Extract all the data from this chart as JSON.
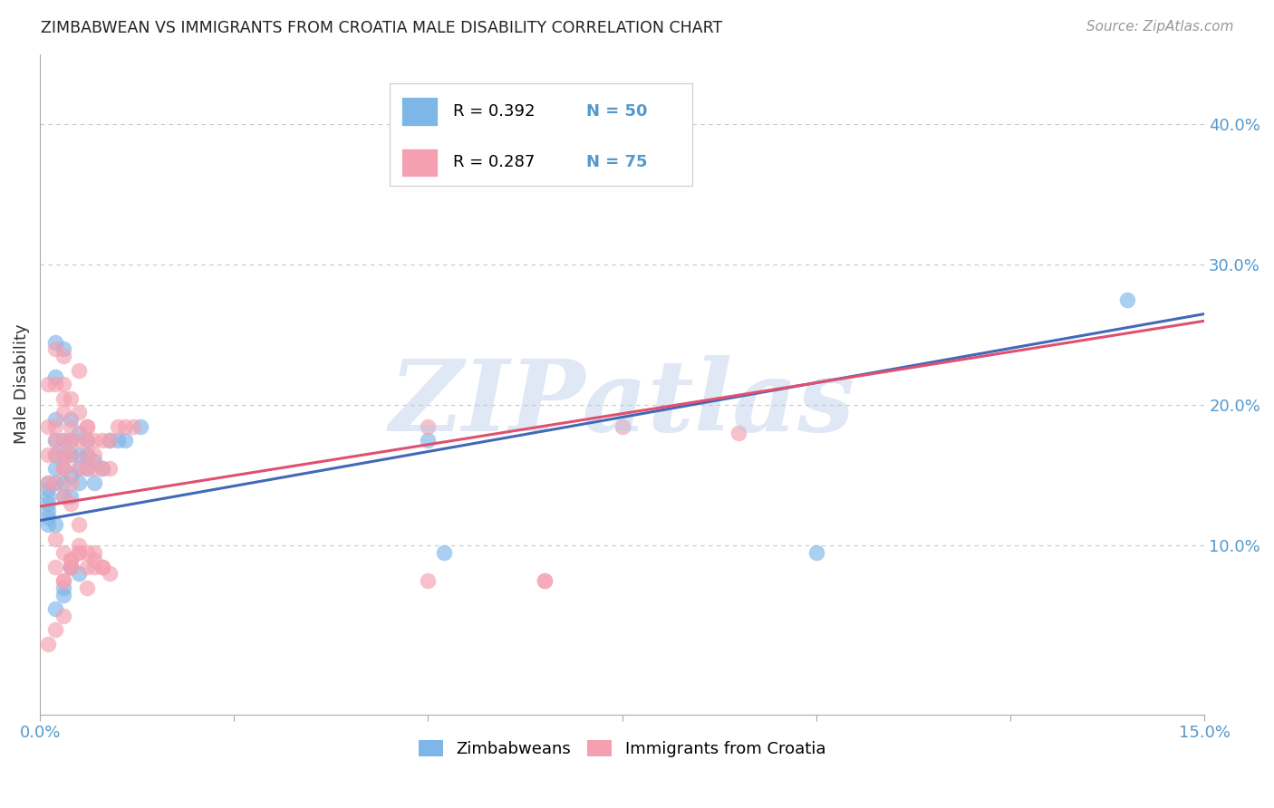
{
  "title": "ZIMBABWEAN VS IMMIGRANTS FROM CROATIA MALE DISABILITY CORRELATION CHART",
  "source": "Source: ZipAtlas.com",
  "ylabel_label": "Male Disability",
  "xlim": [
    0.0,
    0.15
  ],
  "ylim": [
    -0.02,
    0.45
  ],
  "xtick_positions": [
    0.0,
    0.025,
    0.05,
    0.075,
    0.1,
    0.125,
    0.15
  ],
  "xtick_labels": [
    "0.0%",
    "",
    "",
    "",
    "",
    "",
    "15.0%"
  ],
  "yticks": [
    0.1,
    0.2,
    0.3,
    0.4
  ],
  "ytick_labels": [
    "10.0%",
    "20.0%",
    "30.0%",
    "40.0%"
  ],
  "blue_color": "#7EB6E8",
  "pink_color": "#F4A0B0",
  "blue_line_color": "#4169B8",
  "pink_line_color": "#E05070",
  "watermark": "ZIPatlas",
  "background_color": "#ffffff",
  "grid_color": "#c8c8c8",
  "blue_scatter_x": [
    0.001,
    0.001,
    0.001,
    0.001,
    0.001,
    0.001,
    0.001,
    0.002,
    0.002,
    0.002,
    0.002,
    0.002,
    0.002,
    0.002,
    0.002,
    0.003,
    0.003,
    0.003,
    0.003,
    0.003,
    0.003,
    0.004,
    0.004,
    0.004,
    0.004,
    0.004,
    0.005,
    0.005,
    0.005,
    0.005,
    0.006,
    0.006,
    0.006,
    0.007,
    0.007,
    0.008,
    0.009,
    0.01,
    0.011,
    0.013,
    0.05,
    0.052,
    0.1,
    0.14,
    0.002,
    0.003,
    0.004,
    0.003,
    0.004,
    0.005
  ],
  "blue_scatter_y": [
    0.145,
    0.14,
    0.135,
    0.13,
    0.125,
    0.12,
    0.115,
    0.245,
    0.22,
    0.19,
    0.175,
    0.165,
    0.155,
    0.145,
    0.115,
    0.24,
    0.175,
    0.165,
    0.155,
    0.145,
    0.135,
    0.19,
    0.175,
    0.165,
    0.15,
    0.135,
    0.18,
    0.165,
    0.155,
    0.145,
    0.175,
    0.165,
    0.155,
    0.16,
    0.145,
    0.155,
    0.175,
    0.175,
    0.175,
    0.185,
    0.175,
    0.095,
    0.095,
    0.275,
    0.055,
    0.07,
    0.085,
    0.065,
    0.085,
    0.08
  ],
  "pink_scatter_x": [
    0.001,
    0.001,
    0.001,
    0.001,
    0.002,
    0.002,
    0.002,
    0.002,
    0.002,
    0.002,
    0.003,
    0.003,
    0.003,
    0.003,
    0.003,
    0.003,
    0.003,
    0.004,
    0.004,
    0.004,
    0.004,
    0.004,
    0.005,
    0.005,
    0.005,
    0.005,
    0.006,
    0.006,
    0.006,
    0.006,
    0.007,
    0.007,
    0.007,
    0.008,
    0.008,
    0.009,
    0.009,
    0.01,
    0.011,
    0.012,
    0.05,
    0.05,
    0.065,
    0.075,
    0.09,
    0.002,
    0.003,
    0.004,
    0.003,
    0.004,
    0.005,
    0.006,
    0.007,
    0.008,
    0.005,
    0.006,
    0.007,
    0.008,
    0.009,
    0.005,
    0.003,
    0.004,
    0.003,
    0.002,
    0.006,
    0.007,
    0.004,
    0.003,
    0.005,
    0.004,
    0.001,
    0.002,
    0.003,
    0.006,
    0.065
  ],
  "pink_scatter_y": [
    0.215,
    0.185,
    0.165,
    0.145,
    0.24,
    0.215,
    0.185,
    0.175,
    0.165,
    0.145,
    0.235,
    0.215,
    0.205,
    0.195,
    0.175,
    0.165,
    0.155,
    0.205,
    0.185,
    0.175,
    0.165,
    0.145,
    0.225,
    0.195,
    0.175,
    0.155,
    0.185,
    0.175,
    0.165,
    0.155,
    0.175,
    0.165,
    0.155,
    0.175,
    0.155,
    0.175,
    0.155,
    0.185,
    0.185,
    0.185,
    0.185,
    0.075,
    0.075,
    0.185,
    0.18,
    0.085,
    0.095,
    0.09,
    0.075,
    0.085,
    0.095,
    0.085,
    0.085,
    0.085,
    0.115,
    0.095,
    0.09,
    0.085,
    0.08,
    0.1,
    0.155,
    0.13,
    0.135,
    0.105,
    0.185,
    0.095,
    0.085,
    0.075,
    0.095,
    0.09,
    0.03,
    0.04,
    0.05,
    0.07,
    0.075
  ],
  "blue_line_x": [
    0.0,
    0.15
  ],
  "blue_line_y": [
    0.118,
    0.265
  ],
  "pink_line_x": [
    0.0,
    0.15
  ],
  "pink_line_y": [
    0.128,
    0.26
  ],
  "legend_items": [
    {
      "r": "R = 0.392",
      "n": "N = 50",
      "color": "#7EB6E8"
    },
    {
      "r": "R = 0.287",
      "n": "N = 75",
      "color": "#F4A0B0"
    }
  ],
  "bottom_legend": [
    "Zimbabweans",
    "Immigrants from Croatia"
  ]
}
